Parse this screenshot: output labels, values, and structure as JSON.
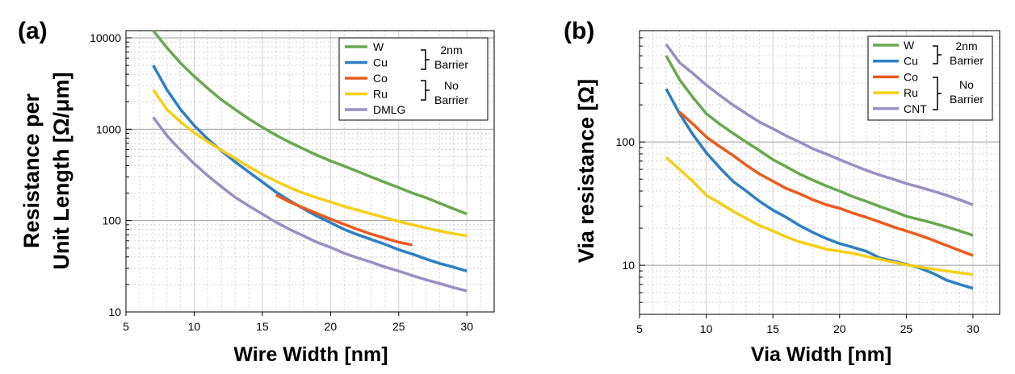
{
  "colors": {
    "W": "#6aa84f",
    "Cu": "#2f7fc1",
    "Co": "#ea5b1e",
    "Ru": "#f5cf16",
    "DMLG": "#9a8fc2",
    "CNT": "#9a8fc2",
    "major_grid": "#9e9e9e",
    "minor_grid": "#d0d0d0"
  },
  "chart_data": [
    {
      "type": "line",
      "panel_label": "(a)",
      "xlabel": "Wire Width [nm]",
      "ylabel_line1": "Resistance per",
      "ylabel_line2": "Unit Length [Ω/μm]",
      "xlim": [
        5,
        32
      ],
      "ylim": [
        10,
        12000
      ],
      "ylog": true,
      "x_ticks": [
        "5",
        "10",
        "15",
        "20",
        "25",
        "30"
      ],
      "y_ticks": [
        "10",
        "100",
        "1000",
        "10000"
      ],
      "grid": true,
      "legend_position": "top-right",
      "legend_groups": [
        {
          "label_line1": "2nm",
          "label_line2": "Barrier"
        },
        {
          "label_line1": "No",
          "label_line2": "Barrier"
        }
      ],
      "series": [
        {
          "name": "W",
          "color_key": "W",
          "x": [
            7,
            8,
            9,
            10,
            11,
            12,
            13,
            14,
            15,
            16,
            17,
            18,
            19,
            20,
            21,
            22,
            23,
            24,
            25,
            26,
            27,
            28,
            29,
            30
          ],
          "y": [
            12000,
            7800,
            5300,
            3800,
            2800,
            2100,
            1650,
            1300,
            1050,
            860,
            720,
            610,
            520,
            450,
            395,
            345,
            300,
            262,
            230,
            200,
            178,
            155,
            135,
            118
          ]
        },
        {
          "name": "Cu",
          "color_key": "Cu",
          "x": [
            7,
            8,
            9,
            10,
            11,
            12,
            13,
            14,
            15,
            16,
            17,
            18,
            19,
            20,
            21,
            22,
            23,
            24,
            25,
            26,
            27,
            28,
            29,
            30
          ],
          "y": [
            5000,
            2700,
            1650,
            1100,
            780,
            580,
            440,
            340,
            265,
            205,
            165,
            135,
            112,
            95,
            80,
            70,
            62,
            55,
            48,
            43,
            38,
            34,
            31,
            28
          ]
        },
        {
          "name": "Co",
          "color_key": "Co",
          "x": [
            16,
            17,
            18,
            19,
            20,
            21,
            22,
            23,
            24,
            25,
            26
          ],
          "y": [
            190,
            160,
            138,
            120,
            104,
            91,
            80,
            71,
            64,
            58,
            54
          ]
        },
        {
          "name": "Ru",
          "color_key": "Ru",
          "x": [
            7,
            8,
            9,
            10,
            11,
            12,
            13,
            14,
            15,
            16,
            17,
            18,
            19,
            20,
            21,
            22,
            23,
            24,
            25,
            26,
            27,
            28,
            29,
            30
          ],
          "y": [
            2700,
            1650,
            1200,
            920,
            730,
            590,
            480,
            390,
            320,
            270,
            230,
            200,
            178,
            160,
            143,
            130,
            118,
            108,
            98,
            90,
            83,
            77,
            72,
            68
          ]
        },
        {
          "name": "DMLG",
          "color_key": "DMLG",
          "x": [
            7,
            8,
            9,
            10,
            11,
            12,
            13,
            14,
            15,
            16,
            17,
            18,
            19,
            20,
            21,
            22,
            23,
            24,
            25,
            26,
            27,
            28,
            29,
            30
          ],
          "y": [
            1350,
            850,
            590,
            420,
            310,
            235,
            180,
            145,
            118,
            96,
            80,
            68,
            58,
            51,
            44,
            39,
            35,
            31,
            28,
            25,
            22.5,
            20.5,
            18.5,
            17
          ]
        }
      ],
      "legend_order": [
        "W",
        "Cu",
        "Co",
        "Ru",
        "DMLG"
      ]
    },
    {
      "type": "line",
      "panel_label": "(b)",
      "xlabel": "Via Width [nm]",
      "ylabel": "Via resistance [Ω]",
      "xlim": [
        5,
        32
      ],
      "ylim": [
        4,
        800
      ],
      "ylog": true,
      "x_ticks": [
        "5",
        "10",
        "15",
        "20",
        "25",
        "30"
      ],
      "y_ticks": [
        "10",
        "100"
      ],
      "grid": true,
      "legend_position": "top-right",
      "legend_groups": [
        {
          "label_line1": "2nm",
          "label_line2": "Barrier"
        },
        {
          "label_line1": "No",
          "label_line2": "Barrier"
        }
      ],
      "series": [
        {
          "name": "W",
          "color_key": "W",
          "x": [
            7,
            8,
            9,
            10,
            11,
            12,
            13,
            14,
            15,
            16,
            17,
            18,
            19,
            20,
            21,
            22,
            23,
            24,
            25,
            26,
            27,
            28,
            29,
            30
          ],
          "y": [
            500,
            320,
            230,
            170,
            140,
            118,
            100,
            85,
            72,
            63,
            55,
            49,
            44,
            40,
            36,
            33,
            30,
            27.5,
            25,
            23.5,
            22,
            20.5,
            19,
            17.5
          ]
        },
        {
          "name": "Cu",
          "color_key": "Cu",
          "x": [
            7,
            8,
            9,
            10,
            11,
            12,
            13,
            14,
            15,
            16,
            17,
            18,
            19,
            20,
            21,
            22,
            23,
            24,
            25,
            26,
            27,
            28,
            29,
            30
          ],
          "y": [
            270,
            170,
            115,
            82,
            62,
            48,
            40,
            33,
            28,
            24.5,
            21,
            18.5,
            16.5,
            15,
            14,
            13,
            11.5,
            10.8,
            10.2,
            9.5,
            8.6,
            7.6,
            7,
            6.5
          ]
        },
        {
          "name": "Co",
          "color_key": "Co",
          "x": [
            8,
            9,
            10,
            11,
            12,
            13,
            14,
            15,
            16,
            17,
            18,
            19,
            20,
            21,
            22,
            23,
            24,
            25,
            26,
            27,
            28,
            29,
            30
          ],
          "y": [
            175,
            140,
            110,
            92,
            78,
            65,
            55,
            48,
            42,
            38,
            34,
            31,
            29,
            26.5,
            24.5,
            22.5,
            20.5,
            19,
            17.5,
            16,
            14.5,
            13.2,
            12
          ]
        },
        {
          "name": "Ru",
          "color_key": "Ru",
          "x": [
            7,
            8,
            9,
            10,
            11,
            12,
            13,
            14,
            15,
            16,
            17,
            18,
            19,
            20,
            21,
            22,
            23,
            24,
            25,
            26,
            27,
            28,
            29,
            30
          ],
          "y": [
            75,
            60,
            48,
            37,
            32,
            27.5,
            24,
            21,
            19,
            17,
            15.5,
            14.5,
            13.5,
            13,
            12.5,
            11.8,
            11.2,
            10.6,
            10.1,
            9.7,
            9.3,
            9,
            8.7,
            8.4
          ]
        },
        {
          "name": "CNT",
          "color_key": "CNT",
          "x": [
            7,
            8,
            9,
            10,
            11,
            12,
            13,
            14,
            15,
            16,
            17,
            18,
            19,
            20,
            21,
            22,
            23,
            24,
            25,
            26,
            27,
            28,
            29,
            30
          ],
          "y": [
            620,
            440,
            360,
            290,
            240,
            200,
            170,
            145,
            128,
            112,
            100,
            88,
            80,
            72,
            65,
            59,
            54,
            50,
            46,
            43,
            40,
            37,
            34,
            31
          ]
        }
      ],
      "legend_order": [
        "W",
        "Cu",
        "Co",
        "Ru",
        "CNT"
      ]
    }
  ]
}
